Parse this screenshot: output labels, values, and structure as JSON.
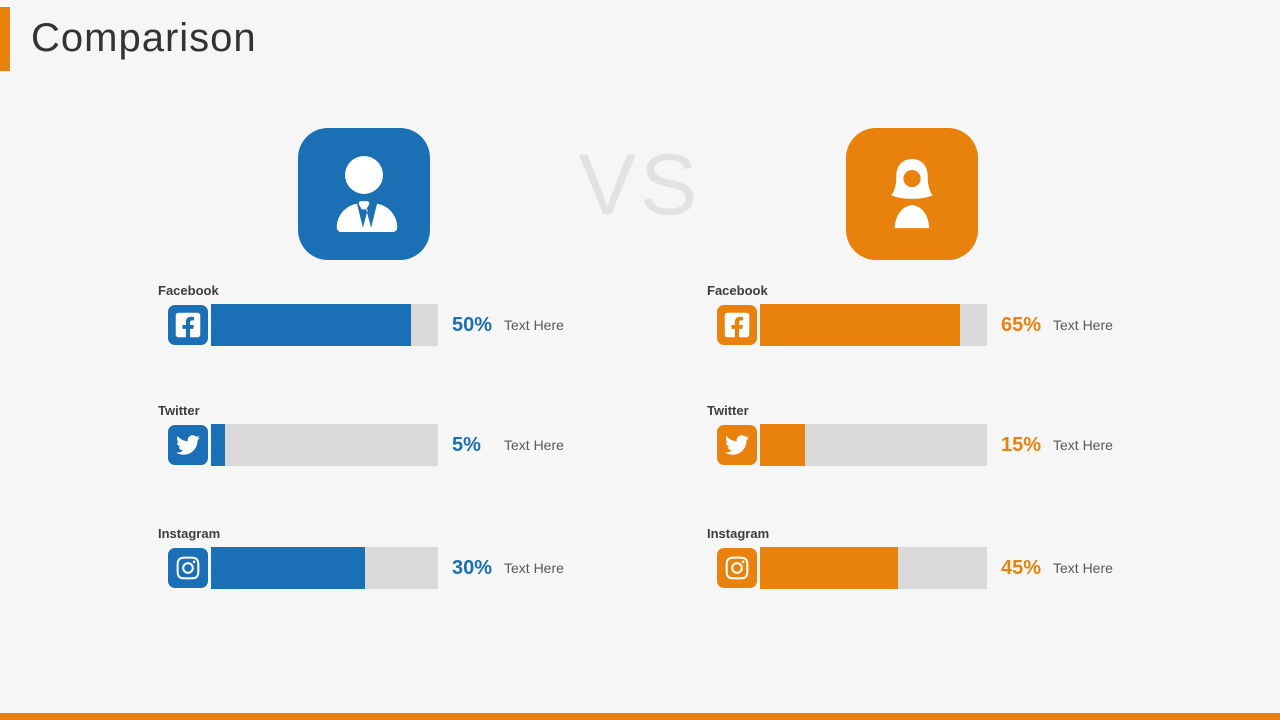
{
  "slide": {
    "title": "Comparison",
    "vs_label": "VS",
    "colors": {
      "left_accent": "#1a6fb5",
      "right_accent": "#e8820d",
      "bar_track": "#d9d9d9",
      "background": "#f6f6f6",
      "vs_text": "#e2e2e2",
      "footer": "#e8820d"
    }
  },
  "columns": [
    {
      "side": "left",
      "avatar_icon": "businessman-icon",
      "accent": "#1a6fb5",
      "rows": [
        {
          "label": "Facebook",
          "icon": "facebook-icon",
          "percent": "50%",
          "bar_fill_pct": 88,
          "note": "Text Here"
        },
        {
          "label": "Twitter",
          "icon": "twitter-icon",
          "percent": "5%",
          "bar_fill_pct": 6,
          "note": "Text Here"
        },
        {
          "label": "Instagram",
          "icon": "instagram-icon",
          "percent": "30%",
          "bar_fill_pct": 68,
          "note": "Text Here"
        }
      ]
    },
    {
      "side": "right",
      "avatar_icon": "businesswoman-icon",
      "accent": "#e8820d",
      "rows": [
        {
          "label": "Facebook",
          "icon": "facebook-icon",
          "percent": "65%",
          "bar_fill_pct": 88,
          "note": "Text Here"
        },
        {
          "label": "Twitter",
          "icon": "twitter-icon",
          "percent": "15%",
          "bar_fill_pct": 20,
          "note": "Text Here"
        },
        {
          "label": "Instagram",
          "icon": "instagram-icon",
          "percent": "45%",
          "bar_fill_pct": 61,
          "note": "Text Here"
        }
      ]
    }
  ],
  "chart_data": {
    "type": "bar",
    "title": "Comparison",
    "categories": [
      "Facebook",
      "Twitter",
      "Instagram"
    ],
    "series": [
      {
        "name": "Left person (blue, businessman)",
        "values": [
          50,
          5,
          30
        ]
      },
      {
        "name": "Right person (orange, businesswoman)",
        "values": [
          65,
          15,
          45
        ]
      }
    ],
    "unit": "percent",
    "value_labels": [
      [
        "50%",
        "5%",
        "30%"
      ],
      [
        "65%",
        "15%",
        "45%"
      ]
    ],
    "legend_position": "avatars-above-columns",
    "grid": false
  }
}
